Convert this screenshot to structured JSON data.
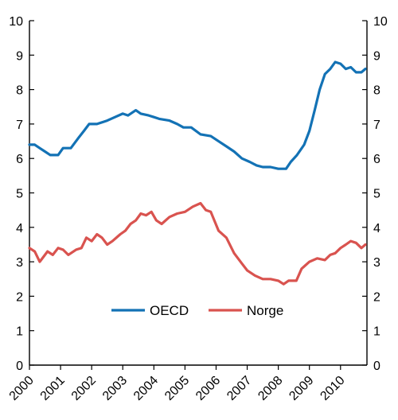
{
  "chart_data": {
    "type": "line",
    "title": "",
    "xlabel": "",
    "ylabel": "",
    "xlim": [
      2000,
      2010.85
    ],
    "ylim": [
      0,
      10
    ],
    "x_ticks": [
      "2000",
      "2001",
      "2002",
      "2003",
      "2004",
      "2005",
      "2006",
      "2007",
      "2008",
      "2009",
      "2010"
    ],
    "y_ticks": [
      "0",
      "1",
      "2",
      "3",
      "4",
      "5",
      "6",
      "7",
      "8",
      "9",
      "10"
    ],
    "grid": false,
    "legend_position": "inside-lower-center",
    "series": [
      {
        "name": "OECD",
        "color": "#1372b5",
        "points": [
          [
            2000.0,
            6.4
          ],
          [
            2000.17,
            6.4
          ],
          [
            2000.33,
            6.3
          ],
          [
            2000.5,
            6.2
          ],
          [
            2000.67,
            6.1
          ],
          [
            2000.92,
            6.1
          ],
          [
            2001.08,
            6.3
          ],
          [
            2001.33,
            6.3
          ],
          [
            2001.58,
            6.6
          ],
          [
            2001.75,
            6.8
          ],
          [
            2001.92,
            7.0
          ],
          [
            2002.17,
            7.0
          ],
          [
            2002.5,
            7.1
          ],
          [
            2002.75,
            7.2
          ],
          [
            2003.0,
            7.3
          ],
          [
            2003.17,
            7.25
          ],
          [
            2003.42,
            7.4
          ],
          [
            2003.58,
            7.3
          ],
          [
            2003.83,
            7.25
          ],
          [
            2004.0,
            7.2
          ],
          [
            2004.17,
            7.15
          ],
          [
            2004.5,
            7.1
          ],
          [
            2004.75,
            7.0
          ],
          [
            2004.95,
            6.9
          ],
          [
            2005.2,
            6.9
          ],
          [
            2005.5,
            6.7
          ],
          [
            2005.83,
            6.65
          ],
          [
            2006.08,
            6.5
          ],
          [
            2006.33,
            6.35
          ],
          [
            2006.58,
            6.2
          ],
          [
            2006.83,
            6.0
          ],
          [
            2007.08,
            5.9
          ],
          [
            2007.3,
            5.8
          ],
          [
            2007.5,
            5.75
          ],
          [
            2007.75,
            5.75
          ],
          [
            2008.0,
            5.7
          ],
          [
            2008.25,
            5.7
          ],
          [
            2008.4,
            5.9
          ],
          [
            2008.6,
            6.1
          ],
          [
            2008.83,
            6.4
          ],
          [
            2009.0,
            6.8
          ],
          [
            2009.17,
            7.4
          ],
          [
            2009.33,
            8.0
          ],
          [
            2009.5,
            8.45
          ],
          [
            2009.67,
            8.6
          ],
          [
            2009.83,
            8.8
          ],
          [
            2010.0,
            8.75
          ],
          [
            2010.17,
            8.6
          ],
          [
            2010.33,
            8.65
          ],
          [
            2010.5,
            8.5
          ],
          [
            2010.67,
            8.5
          ],
          [
            2010.8,
            8.6
          ]
        ]
      },
      {
        "name": "Norge",
        "color": "#d9534f",
        "points": [
          [
            2000.0,
            3.4
          ],
          [
            2000.17,
            3.3
          ],
          [
            2000.33,
            3.0
          ],
          [
            2000.58,
            3.3
          ],
          [
            2000.75,
            3.2
          ],
          [
            2000.92,
            3.4
          ],
          [
            2001.08,
            3.35
          ],
          [
            2001.25,
            3.2
          ],
          [
            2001.5,
            3.35
          ],
          [
            2001.67,
            3.4
          ],
          [
            2001.83,
            3.7
          ],
          [
            2002.0,
            3.6
          ],
          [
            2002.17,
            3.8
          ],
          [
            2002.33,
            3.7
          ],
          [
            2002.5,
            3.5
          ],
          [
            2002.67,
            3.6
          ],
          [
            2002.92,
            3.8
          ],
          [
            2003.08,
            3.9
          ],
          [
            2003.25,
            4.1
          ],
          [
            2003.42,
            4.2
          ],
          [
            2003.58,
            4.4
          ],
          [
            2003.75,
            4.35
          ],
          [
            2003.92,
            4.45
          ],
          [
            2004.08,
            4.2
          ],
          [
            2004.25,
            4.1
          ],
          [
            2004.5,
            4.3
          ],
          [
            2004.75,
            4.4
          ],
          [
            2005.0,
            4.45
          ],
          [
            2005.25,
            4.6
          ],
          [
            2005.5,
            4.7
          ],
          [
            2005.67,
            4.5
          ],
          [
            2005.83,
            4.45
          ],
          [
            2006.08,
            3.9
          ],
          [
            2006.33,
            3.7
          ],
          [
            2006.58,
            3.25
          ],
          [
            2006.83,
            2.95
          ],
          [
            2007.0,
            2.75
          ],
          [
            2007.25,
            2.6
          ],
          [
            2007.5,
            2.5
          ],
          [
            2007.75,
            2.5
          ],
          [
            2008.0,
            2.45
          ],
          [
            2008.17,
            2.35
          ],
          [
            2008.33,
            2.45
          ],
          [
            2008.58,
            2.45
          ],
          [
            2008.75,
            2.8
          ],
          [
            2009.0,
            3.0
          ],
          [
            2009.25,
            3.1
          ],
          [
            2009.5,
            3.05
          ],
          [
            2009.67,
            3.2
          ],
          [
            2009.83,
            3.25
          ],
          [
            2010.0,
            3.4
          ],
          [
            2010.17,
            3.5
          ],
          [
            2010.33,
            3.6
          ],
          [
            2010.5,
            3.55
          ],
          [
            2010.67,
            3.4
          ],
          [
            2010.8,
            3.5
          ]
        ]
      }
    ]
  }
}
